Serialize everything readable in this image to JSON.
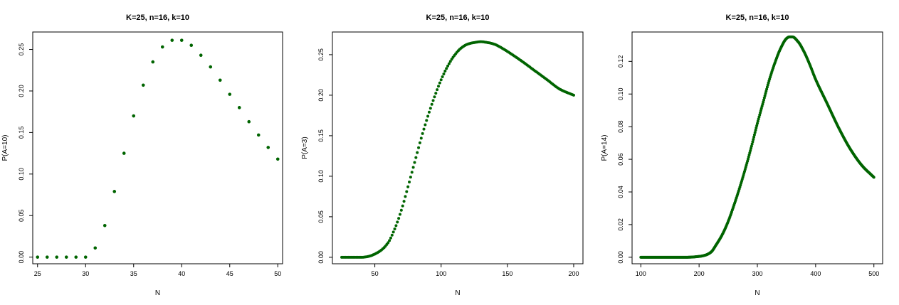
{
  "chart_data": [
    {
      "type": "scatter",
      "title": "K=25, n=16, k=10",
      "xlabel": "N",
      "ylabel": "P(A=10)",
      "xlim": [
        24.5,
        50.5
      ],
      "ylim": [
        -0.008,
        0.271
      ],
      "xticks": [
        "25",
        "30",
        "35",
        "40",
        "45",
        "50"
      ],
      "yticks": [
        "0.00",
        "0.05",
        "0.10",
        "0.15",
        "0.20",
        "0.25"
      ],
      "point_color": "#006400",
      "grid": false,
      "x": [
        25,
        26,
        27,
        28,
        29,
        30,
        31,
        32,
        33,
        34,
        35,
        36,
        37,
        38,
        39,
        40,
        41,
        42,
        43,
        44,
        45,
        46,
        47,
        48,
        49,
        50
      ],
      "y": [
        0,
        0,
        0,
        0,
        0,
        0,
        0.011,
        0.038,
        0.079,
        0.125,
        0.17,
        0.207,
        0.235,
        0.253,
        0.261,
        0.261,
        0.255,
        0.243,
        0.229,
        0.213,
        0.196,
        0.18,
        0.163,
        0.147,
        0.132,
        0.118
      ]
    },
    {
      "type": "scatter",
      "title": "K=25, n=16, k=10",
      "xlabel": "N",
      "ylabel": "P(A=3)",
      "xlim": [
        18,
        207
      ],
      "ylim": [
        -0.008,
        0.278
      ],
      "xticks": [
        "50",
        "100",
        "150",
        "200"
      ],
      "yticks": [
        "0.00",
        "0.05",
        "0.10",
        "0.15",
        "0.20",
        "0.25"
      ],
      "point_color": "#006400",
      "grid": false,
      "series_knots": {
        "x": [
          25,
          40,
          45,
          50,
          55,
          60,
          65,
          70,
          75,
          80,
          85,
          90,
          95,
          100,
          105,
          110,
          115,
          120,
          125,
          130,
          135,
          140,
          145,
          150,
          160,
          170,
          180,
          190,
          200
        ],
        "y": [
          0,
          0,
          0.001,
          0.004,
          0.009,
          0.018,
          0.035,
          0.058,
          0.087,
          0.117,
          0.147,
          0.174,
          0.198,
          0.219,
          0.236,
          0.249,
          0.258,
          0.263,
          0.265,
          0.266,
          0.265,
          0.263,
          0.259,
          0.254,
          0.243,
          0.231,
          0.219,
          0.207,
          0.2
        ]
      }
    },
    {
      "type": "scatter",
      "title": "K=25, n=16, k=10",
      "xlabel": "N",
      "ylabel": "P(A=14)",
      "xlim": [
        85,
        515
      ],
      "ylim": [
        -0.004,
        0.138
      ],
      "xticks": [
        "100",
        "200",
        "300",
        "400",
        "500"
      ],
      "yticks": [
        "0.00",
        "0.02",
        "0.04",
        "0.06",
        "0.08",
        "0.10",
        "0.12"
      ],
      "point_color": "#006400",
      "grid": false,
      "series_knots": {
        "x": [
          100,
          180,
          200,
          210,
          220,
          230,
          240,
          250,
          260,
          270,
          280,
          290,
          300,
          310,
          320,
          330,
          340,
          350,
          355,
          360,
          370,
          380,
          390,
          400,
          420,
          440,
          460,
          480,
          500
        ],
        "y": [
          0,
          0,
          0.0005,
          0.0012,
          0.003,
          0.008,
          0.014,
          0.022,
          0.032,
          0.043,
          0.055,
          0.068,
          0.082,
          0.095,
          0.108,
          0.119,
          0.128,
          0.134,
          0.135,
          0.135,
          0.132,
          0.126,
          0.118,
          0.109,
          0.094,
          0.079,
          0.066,
          0.056,
          0.049
        ]
      }
    }
  ]
}
